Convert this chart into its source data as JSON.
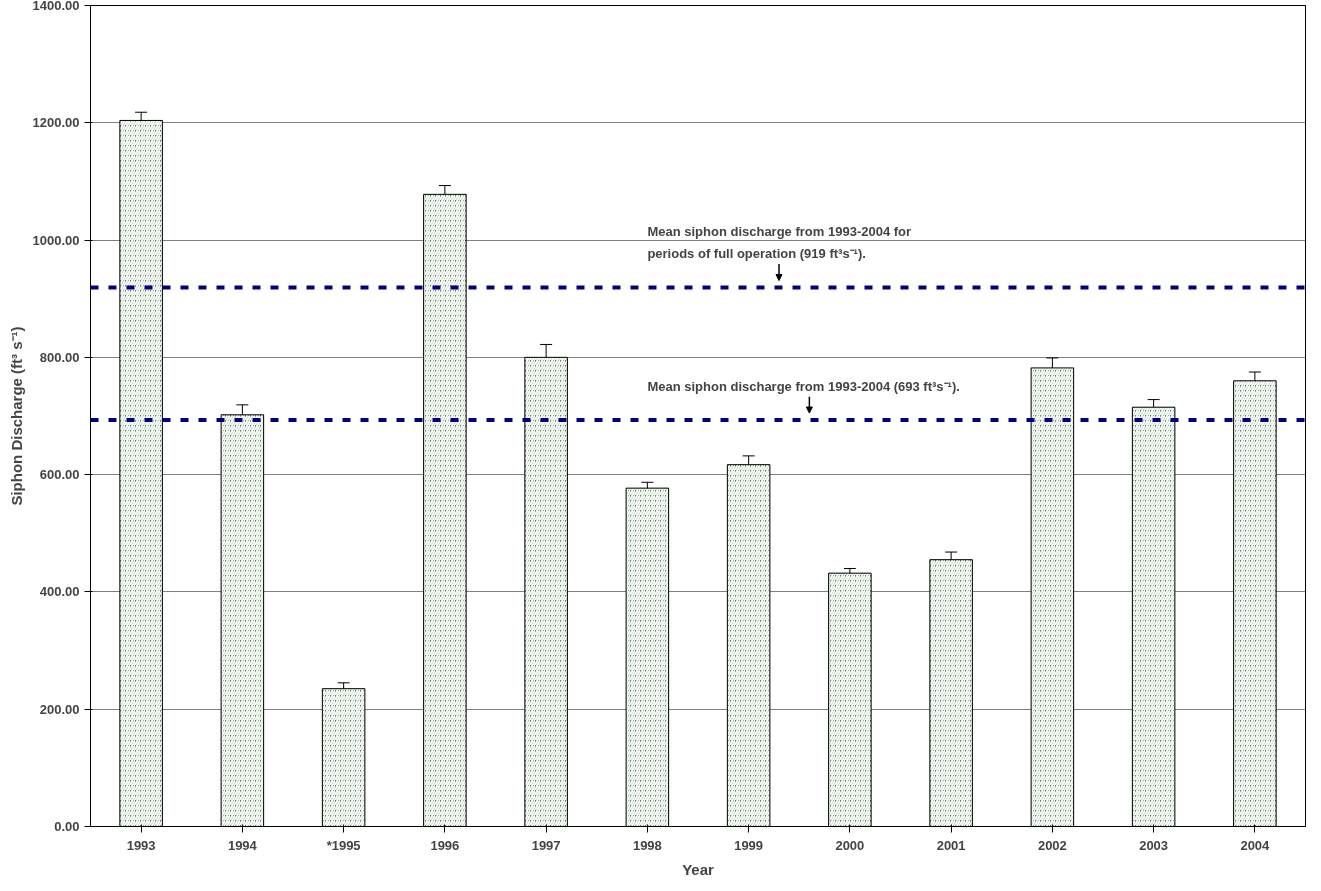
{
  "chart_data": {
    "type": "bar",
    "xlabel": "Year",
    "ylabel": "Siphon Discharge (ft³ s⁻¹)",
    "categories": [
      "1993",
      "1994",
      "*1995",
      "1996",
      "1997",
      "1998",
      "1999",
      "2000",
      "2001",
      "2002",
      "2003",
      "2004"
    ],
    "values": [
      1204,
      702,
      235,
      1078,
      800,
      577,
      617,
      432,
      455,
      782,
      715,
      760
    ],
    "errors": [
      14,
      17,
      10,
      15,
      22,
      10,
      15,
      8,
      13,
      17,
      13,
      15
    ],
    "color": "#4f7f4f",
    "ylim": [
      0,
      1400
    ],
    "yticks": [
      {
        "value": 0,
        "label": "0.00"
      },
      {
        "value": 200,
        "label": "200.00"
      },
      {
        "value": 400,
        "label": "400.00"
      },
      {
        "value": 600,
        "label": "600.00"
      },
      {
        "value": 800,
        "label": "800.00"
      },
      {
        "value": 1000,
        "label": "1000.00"
      },
      {
        "value": 1200,
        "label": "1200.00"
      },
      {
        "value": 1400,
        "label": "1400.00"
      }
    ],
    "grid": "y",
    "ref_lines": [
      {
        "axis": "y",
        "value": 919,
        "label": "Mean siphon discharge from 1993-2004 for\nperiods of full operation (919 ft³s⁻¹).",
        "color": "#000080",
        "line_style": "dashed"
      },
      {
        "axis": "y",
        "value": 693,
        "label": "Mean siphon discharge from 1993-2004 (693 ft³s⁻¹).",
        "color": "#000080",
        "line_style": "dashed"
      }
    ]
  }
}
